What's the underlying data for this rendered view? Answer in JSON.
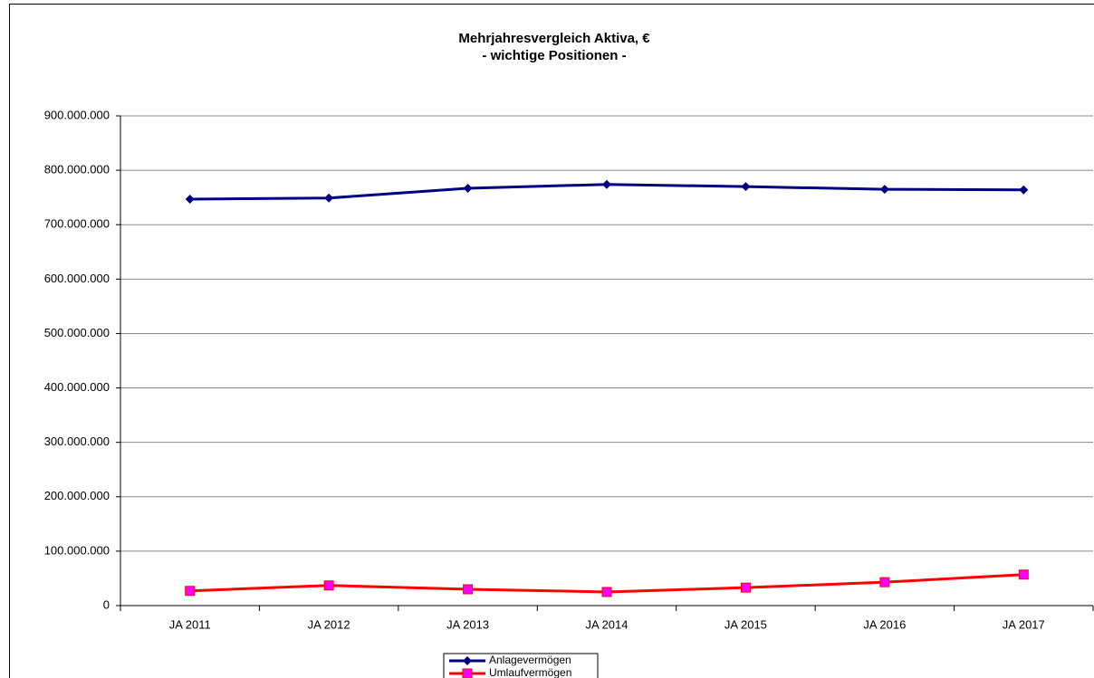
{
  "chart_data": {
    "type": "line",
    "title": "Mehrjahresvergleich Aktiva, €",
    "subtitle": "- wichtige Positionen -",
    "categories": [
      "JA 2011",
      "JA 2012",
      "JA 2013",
      "JA 2014",
      "JA 2015",
      "JA 2016",
      "JA 2017"
    ],
    "series": [
      {
        "name": "Anlagevermögen",
        "color": "#000080",
        "marker": "diamond",
        "marker_color": "#000080",
        "values": [
          747000000,
          749000000,
          767000000,
          774000000,
          770000000,
          765000000,
          764000000
        ]
      },
      {
        "name": "Umlaufvermögen",
        "color": "#ff0000",
        "marker": "square",
        "marker_color": "#ff00ff",
        "values": [
          27000000,
          37000000,
          30000000,
          25000000,
          33000000,
          43000000,
          57000000
        ]
      }
    ],
    "ylim": [
      0,
      900000000
    ],
    "yticks": [
      0,
      {
        "value": 100000000,
        "label": "100.000.000"
      },
      {
        "value": 200000000,
        "label": "200.000.000"
      },
      {
        "value": 300000000,
        "label": "300.000.000"
      },
      {
        "value": 400000000,
        "label": "400.000.000"
      },
      {
        "value": 500000000,
        "label": "500.000.000"
      },
      {
        "value": 600000000,
        "label": "600.000.000"
      },
      {
        "value": 700000000,
        "label": "700.000.000"
      },
      {
        "value": 800000000,
        "label": "800.000.000"
      },
      {
        "value": 900000000,
        "label": "900.000.000"
      }
    ],
    "grid": true,
    "legend": "bottom"
  }
}
